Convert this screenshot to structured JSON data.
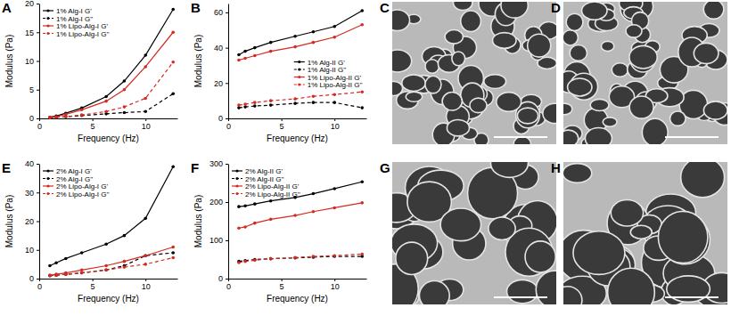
{
  "chart_data": [
    {
      "type": "line",
      "title": "A",
      "x_label": "Frequency (Hz)",
      "y_label": "Modulus (Pa)",
      "x": [
        1,
        1.6,
        2.5,
        4,
        6.3,
        8,
        10,
        12.6
      ],
      "xlim": [
        0,
        13
      ],
      "xticks": [
        0,
        5,
        10
      ],
      "ylim": [
        0,
        20
      ],
      "yticks": [
        0,
        5,
        10,
        15,
        20
      ],
      "legend": "upper left",
      "series": [
        {
          "name": "1% Alg-I G'",
          "color": "#000000",
          "line_style": "solid",
          "marker": "circle",
          "values": [
            0.2,
            0.4,
            0.9,
            1.8,
            3.8,
            6.5,
            11,
            19
          ]
        },
        {
          "name": "1% Alg-I G''",
          "color": "#000000",
          "line_style": "dashed",
          "marker": "circle",
          "values": [
            0.1,
            0.2,
            0.3,
            0.5,
            0.8,
            1.0,
            1.2,
            4.3
          ]
        },
        {
          "name": "1% Lipo-Alg-I G'",
          "color": "#d42a20",
          "line_style": "solid",
          "marker": "circle",
          "values": [
            0.2,
            0.3,
            0.7,
            1.5,
            3,
            5,
            9,
            15
          ]
        },
        {
          "name": "1% Lipo-Alg-I G''",
          "color": "#d42a20",
          "line_style": "dashed",
          "marker": "circle",
          "values": [
            0.1,
            0.2,
            0.3,
            0.6,
            1.2,
            2,
            3.5,
            9.8
          ]
        }
      ]
    },
    {
      "type": "line",
      "title": "B",
      "x_label": "Frequency (Hz)",
      "y_label": "Modulus (Pa)",
      "x": [
        1,
        1.6,
        2.5,
        4,
        6.3,
        8,
        10,
        12.6
      ],
      "xlim": [
        0,
        13
      ],
      "xticks": [
        0,
        5,
        10
      ],
      "ylim": [
        0,
        65
      ],
      "yticks": [
        0,
        20,
        40,
        60
      ],
      "legend": "lower right",
      "series": [
        {
          "name": "1% Alg-II G'",
          "color": "#000000",
          "line_style": "solid",
          "marker": "circle",
          "values": [
            36,
            38,
            40,
            43,
            46.5,
            49,
            52,
            61
          ]
        },
        {
          "name": "1% Alg-II G''",
          "color": "#000000",
          "line_style": "dashed",
          "marker": "circle",
          "values": [
            6,
            6.5,
            7,
            7.5,
            8.5,
            9,
            9,
            6
          ]
        },
        {
          "name": "1% Lipo-Alg-II G'",
          "color": "#d42a20",
          "line_style": "solid",
          "marker": "circle",
          "values": [
            33,
            34,
            35.5,
            38,
            40.5,
            43,
            46,
            53
          ]
        },
        {
          "name": "1% Lipo-Alg-II G''",
          "color": "#d42a20",
          "line_style": "dashed",
          "marker": "circle",
          "values": [
            7.5,
            8,
            9,
            10,
            11,
            12.5,
            13.5,
            15
          ]
        }
      ]
    },
    {
      "type": "line",
      "title": "E",
      "x_label": "Frequency (Hz)",
      "y_label": "Modulus (Pa)",
      "x": [
        1,
        1.6,
        2.5,
        4,
        6.3,
        8,
        10,
        12.6
      ],
      "xlim": [
        0,
        13
      ],
      "xticks": [
        0,
        5,
        10
      ],
      "ylim": [
        0,
        40
      ],
      "yticks": [
        0,
        10,
        20,
        30,
        40
      ],
      "legend": "upper left",
      "series": [
        {
          "name": "2% Alg-I G'",
          "color": "#000000",
          "line_style": "solid",
          "marker": "circle",
          "values": [
            4.5,
            5.5,
            7,
            9,
            12,
            15,
            21,
            39
          ]
        },
        {
          "name": "2% Alg-I G''",
          "color": "#000000",
          "line_style": "dashed",
          "marker": "circle",
          "values": [
            1,
            1.2,
            1.5,
            2,
            3,
            4.5,
            8,
            9
          ]
        },
        {
          "name": "2% Lipo-Alg-I G'",
          "color": "#d42a20",
          "line_style": "solid",
          "marker": "circle",
          "values": [
            1.2,
            1.5,
            2,
            3,
            4.5,
            6,
            8,
            11
          ]
        },
        {
          "name": "2% Lipo-Alg-I G''",
          "color": "#d42a20",
          "line_style": "dashed",
          "marker": "circle",
          "values": [
            1,
            1.2,
            1.5,
            2,
            3,
            4,
            5,
            7.3
          ]
        }
      ]
    },
    {
      "type": "line",
      "title": "F",
      "x_label": "Frequency (Hz)",
      "y_label": "Modulus (Pa)",
      "x": [
        1,
        1.6,
        2.5,
        4,
        6.3,
        8,
        10,
        12.6
      ],
      "xlim": [
        0,
        13
      ],
      "xticks": [
        0,
        5,
        10
      ],
      "ylim": [
        0,
        300
      ],
      "yticks": [
        0,
        100,
        200,
        300
      ],
      "legend": "upper left",
      "series": [
        {
          "name": "2% Alg-II G'",
          "color": "#000000",
          "line_style": "solid",
          "marker": "circle",
          "values": [
            188,
            190,
            195,
            203,
            212,
            222,
            235,
            253
          ]
        },
        {
          "name": "2% Alg-II G''",
          "color": "#000000",
          "line_style": "dashed",
          "marker": "circle",
          "values": [
            45,
            47,
            50,
            52,
            54,
            56,
            58,
            58
          ]
        },
        {
          "name": "2% Lipo-Alg-II G'",
          "color": "#d42a20",
          "line_style": "solid",
          "marker": "circle",
          "values": [
            132,
            135,
            145,
            155,
            165,
            175,
            185,
            198
          ]
        },
        {
          "name": "2% Lipo-Alg-II G''",
          "color": "#d42a20",
          "line_style": "dashed",
          "marker": "circle",
          "values": [
            42,
            45,
            48,
            52,
            55,
            58,
            60,
            64
          ]
        }
      ]
    }
  ],
  "images": [
    {
      "label": "C"
    },
    {
      "label": "D"
    },
    {
      "label": "G"
    },
    {
      "label": "H"
    }
  ]
}
